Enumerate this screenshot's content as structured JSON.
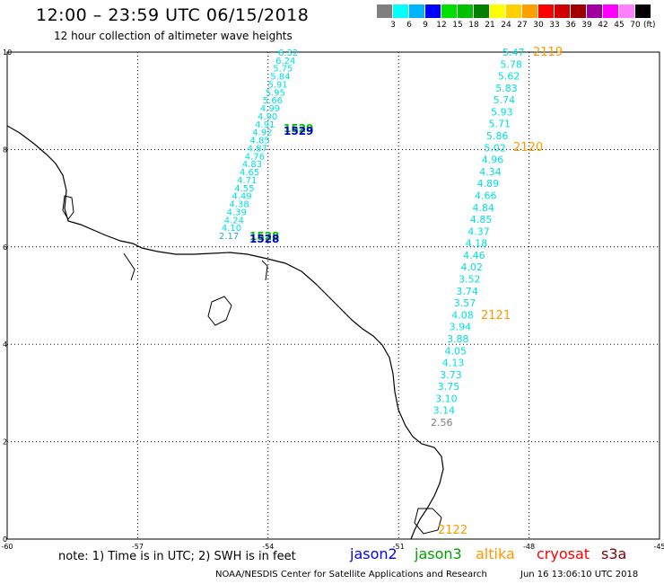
{
  "header": {
    "title": "12:00 – 23:59 UTC 06/15/2018",
    "subtitle": "12 hour collection of altimeter wave heights"
  },
  "legend": {
    "unit": "(ft)",
    "bins": [
      {
        "label": "3",
        "color": "#7f7f7f"
      },
      {
        "label": "6",
        "color": "#00ffff"
      },
      {
        "label": "9",
        "color": "#00b3ff"
      },
      {
        "label": "12",
        "color": "#0000ff"
      },
      {
        "label": "15",
        "color": "#00e000"
      },
      {
        "label": "18",
        "color": "#00c000"
      },
      {
        "label": "21",
        "color": "#008000"
      },
      {
        "label": "24",
        "color": "#ffff00"
      },
      {
        "label": "27",
        "color": "#ffd000"
      },
      {
        "label": "30",
        "color": "#ffa000"
      },
      {
        "label": "33",
        "color": "#ff0000"
      },
      {
        "label": "36",
        "color": "#d00000"
      },
      {
        "label": "39",
        "color": "#a00000"
      },
      {
        "label": "42",
        "color": "#a000a0"
      },
      {
        "label": "45",
        "color": "#ff00ff"
      },
      {
        "label": "70",
        "color": "#ff80ff"
      },
      {
        "label": "",
        "color": "#000000"
      }
    ]
  },
  "axes": {
    "lon_ticks": [
      "-60",
      "-57",
      "-54",
      "-51",
      "-48",
      "-45"
    ],
    "lat_ticks": [
      "0",
      "2",
      "4",
      "6",
      "8",
      "10"
    ],
    "lon_range": [
      -60,
      -45
    ],
    "lat_range": [
      0,
      10
    ]
  },
  "tracks": {
    "track_a": {
      "color": "#00e0e0",
      "values": [
        "6.32",
        "6.24",
        "5.75",
        "5.84",
        "5.91",
        "5.95",
        "5.66",
        "4.99",
        "4.90",
        "4.91",
        "4.92",
        "4.85",
        "4.87",
        "4.76",
        "4.83",
        "4.65",
        "4.71",
        "4.55",
        "4.49",
        "4.38",
        "4.39",
        "4.24",
        "4.10",
        "2.17"
      ],
      "time_labels": [
        {
          "text": "1529",
          "color": "#0000cc"
        },
        {
          "text": "1528",
          "color": "#0000cc"
        }
      ],
      "overlay_labels": [
        {
          "text": "1529",
          "color": "#00c000"
        },
        {
          "text": "1528",
          "color": "#00c000"
        }
      ]
    },
    "track_b": {
      "color": "#00e0e0",
      "values": [
        "5.47",
        "5.78",
        "5.62",
        "5.83",
        "5.74",
        "5.93",
        "5.71",
        "5.86",
        "5.02",
        "4.96",
        "4.34",
        "4.89",
        "4.66",
        "4.84",
        "4.85",
        "4.37",
        "4.18",
        "4.46",
        "4.02",
        "3.52",
        "3.74",
        "3.57",
        "4.08",
        "3.94",
        "3.88",
        "4.05",
        "4.13",
        "3.73",
        "3.75",
        "3.10",
        "3.14",
        "2.56"
      ],
      "low_value_color": "#808080",
      "time_labels": [
        {
          "text": "2119",
          "color": "#ff9900"
        },
        {
          "text": "2120",
          "color": "#ff9900"
        },
        {
          "text": "2121",
          "color": "#ff9900"
        },
        {
          "text": "2122",
          "color": "#ff9900"
        }
      ]
    }
  },
  "footer": {
    "note": "note: 1) Time is in UTC; 2) SWH is in feet",
    "satellites": [
      {
        "name": "jason2",
        "color": "#0000ff"
      },
      {
        "name": "jason3",
        "color": "#00a000"
      },
      {
        "name": "altika",
        "color": "#ff9900"
      },
      {
        "name": "cryosat",
        "color": "#ff0000"
      },
      {
        "name": "s3a",
        "color": "#800000"
      }
    ],
    "credit": "NOAA/NESDIS Center for Satellite Applications and Research",
    "timestamp": "Jun 16 13:06:10 UTC 2018"
  }
}
